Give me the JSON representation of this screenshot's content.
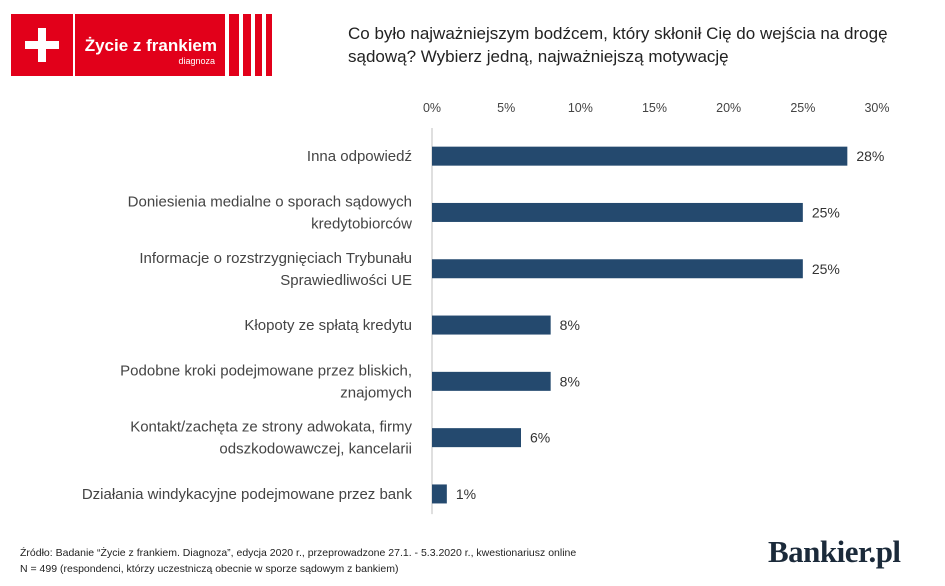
{
  "logo": {
    "title": "Życie z frankiem",
    "subtitle": "diagnoza"
  },
  "question": "Co było najważniejszym bodźcem, który skłonił Cię do wejścia na drogę sądową? Wybierz jedną, najważniejszą motywację",
  "footnote": {
    "source": "Źródło: Badanie “Życie z frankiem. Diagnoza”, edycja 2020 r., przeprowadzone 27.1. - 5.3.2020 r., kwestionariusz online",
    "sample": "N = 499 (respondenci, którzy uczestniczą obecnie w sporze sądowym z bankiem)"
  },
  "brand": "Bankier.pl",
  "colors": {
    "bar": "#24496e",
    "brand_red": "#e2001a"
  },
  "chart_data": {
    "type": "bar",
    "orientation": "horizontal",
    "title": "Co było najważniejszym bodźcem, który skłonił Cię do wejścia na drogę sądową? Wybierz jedną, najważniejszą motywację",
    "categories": [
      [
        "Inna odpowiedź"
      ],
      [
        "Doniesienia medialne o sporach sądowych",
        "kredytobiorców"
      ],
      [
        "Informacje o rozstrzygnięciach Trybunału",
        "Sprawiedliwości UE"
      ],
      [
        "Kłopoty ze spłatą kredytu"
      ],
      [
        "Podobne kroki podejmowane przez bliskich,",
        "znajomych"
      ],
      [
        "Kontakt/zachęta ze strony adwokata, firmy",
        "odszkodowawczej, kancelarii"
      ],
      [
        "Działania windykacyjne podejmowane przez bank"
      ]
    ],
    "values": [
      28,
      25,
      25,
      8,
      8,
      6,
      1
    ],
    "value_labels": [
      "28%",
      "25%",
      "25%",
      "8%",
      "8%",
      "6%",
      "1%"
    ],
    "xlim": [
      0,
      30
    ],
    "xticks": [
      0,
      5,
      10,
      15,
      20,
      25,
      30
    ],
    "xtick_labels": [
      "0%",
      "5%",
      "10%",
      "15%",
      "20%",
      "25%",
      "30%"
    ],
    "axis_position": "top",
    "grid": false,
    "legend": "none"
  }
}
